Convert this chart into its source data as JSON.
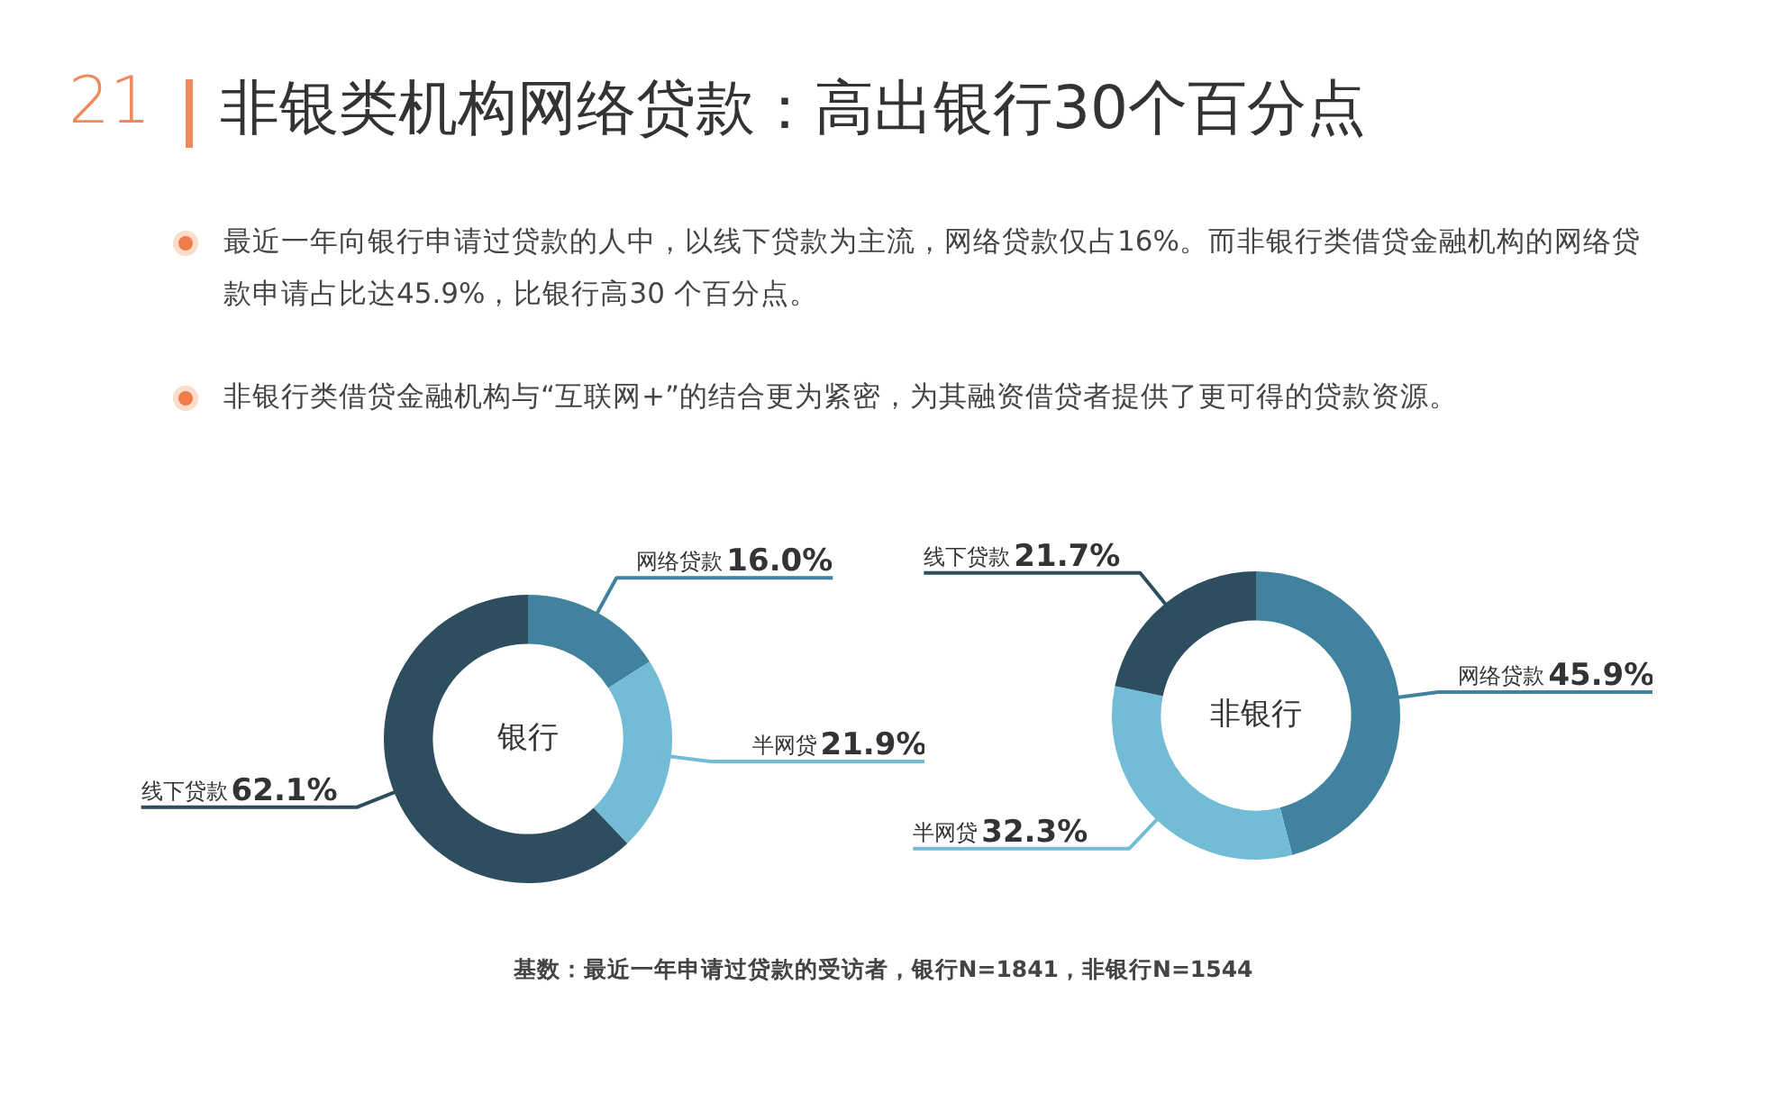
{
  "chart_data": [
    {
      "type": "other",
      "title": "非银类机构网络贷款：高出银行30个百分点",
      "annotations": [
        "21",
        "最近一年向银行申请过贷款的人中，以线下贷款为主流，网络贷款仅占16%。而非银行类借贷金融机构的网络贷款申请占比达45.9%，比银行高30 个百分点。",
        "非银行类借贷金融机构与“互联网+”的结合更为紧密，为其融资借贷者提供了更可得的贷款资源。",
        "基数：最近一年申请过贷款的受访者，银行N=1841，非银行N=1544"
      ]
    },
    {
      "type": "donut",
      "title": "银行",
      "categories": [
        "网络贷款",
        "半网贷",
        "线下贷款"
      ],
      "values": [
        16.0,
        21.9,
        62.1
      ],
      "value_labels": [
        "16.0%",
        "21.9%",
        "62.1%"
      ],
      "colors": [
        "#41829e",
        "#72bcd5",
        "#2c4e5f"
      ]
    },
    {
      "type": "donut",
      "title": "非银行",
      "categories": [
        "网络贷款",
        "半网贷",
        "线下贷款"
      ],
      "values": [
        45.9,
        32.3,
        21.7
      ],
      "value_labels": [
        "45.9%",
        "32.3%",
        "21.7%"
      ],
      "colors": [
        "#41829e",
        "#72bcd5",
        "#2c4e5f"
      ]
    }
  ]
}
